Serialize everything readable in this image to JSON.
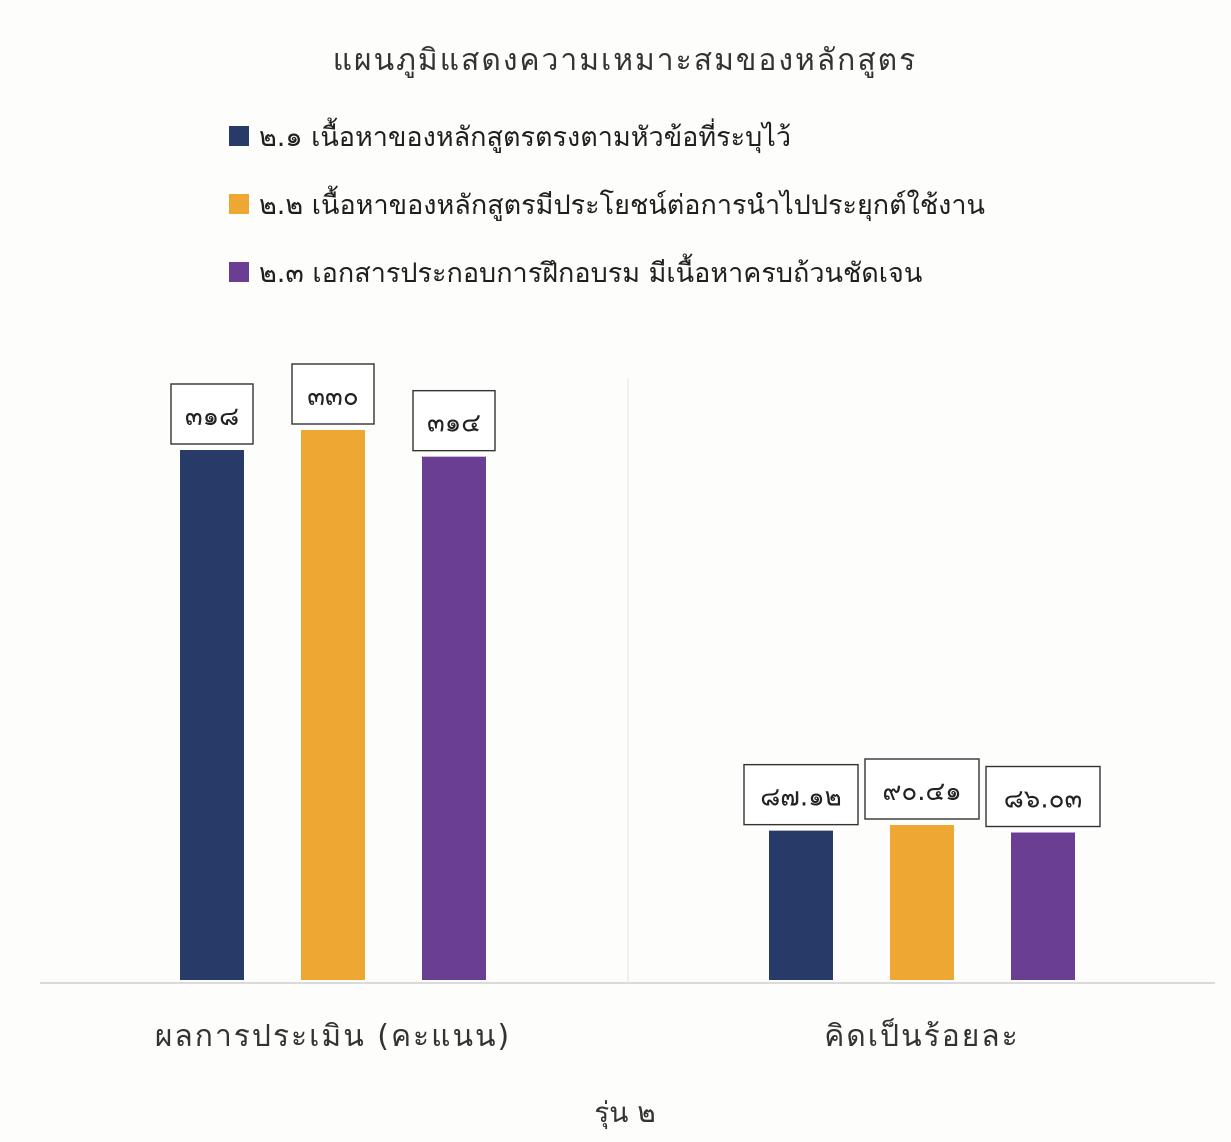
{
  "chart_data": {
    "type": "bar",
    "title": "แผนภูมิแสดงความเหมาะสมของหลักสูตร",
    "subtitle": "รุ่น ๒",
    "categories": [
      "ผลการประเมิน (คะแนน)",
      "คิดเป็นร้อยละ"
    ],
    "series": [
      {
        "name": "๒.๑ เนื้อหาของหลักสูตรตรงตามหัวข้อที่ระบุไว้",
        "color": "#283a68",
        "values": [
          318,
          87.12
        ],
        "labels": [
          "๓๑๘",
          "๘๗.๑๒"
        ]
      },
      {
        "name": "๒.๒ เนื้อหาของหลักสูตรมีประโยชน์ต่อการนำไปประยุกต์ใช้งาน",
        "color": "#eda732",
        "values": [
          330,
          90.41
        ],
        "labels": [
          "๓๓๐",
          "๙๐.๔๑"
        ]
      },
      {
        "name": "๒.๓ เอกสารประกอบการฝึกอบรม มีเนื้อหาครบถ้วนชัดเจน",
        "color": "#6a3f93",
        "values": [
          314,
          86.03
        ],
        "labels": [
          "๓๑๔",
          "๘๖.๐๓"
        ]
      }
    ],
    "legend_position": "top",
    "grid": false
  }
}
